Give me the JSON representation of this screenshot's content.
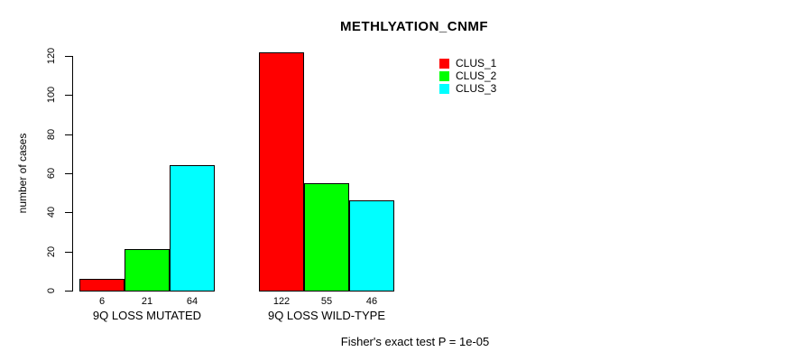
{
  "chart_data": {
    "type": "bar",
    "title": "METHLYATION_CNMF",
    "ylabel": "number of cases",
    "xlabel": "",
    "categories": [
      "9Q LOSS MUTATED",
      "9Q LOSS WILD-TYPE"
    ],
    "series": [
      {
        "name": "CLUS_1",
        "color": "#FF0000",
        "values": [
          6,
          122
        ]
      },
      {
        "name": "CLUS_2",
        "color": "#00FF00",
        "values": [
          21,
          55
        ]
      },
      {
        "name": "CLUS_3",
        "color": "#00FFFF",
        "values": [
          64,
          46
        ]
      }
    ],
    "bar_value_labels": [
      [
        6,
        21,
        64
      ],
      [
        122,
        55,
        46
      ]
    ],
    "yticks": [
      0,
      20,
      40,
      60,
      80,
      100,
      120
    ],
    "ylim": [
      0,
      126
    ],
    "grid": false,
    "legend_position": "top-right",
    "annotation": "Fisher's exact test P = 1e-05",
    "axis_color": "#000000",
    "background_color": "#FFFFFF"
  }
}
